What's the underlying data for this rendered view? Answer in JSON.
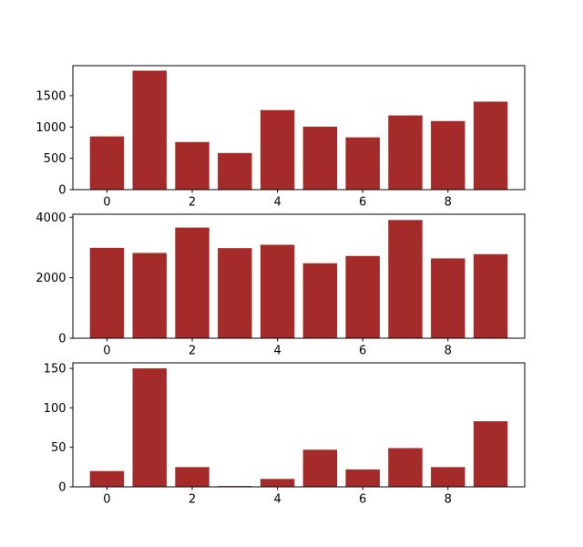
{
  "colors": {
    "bar": "#a52a2a",
    "axis": "#000000",
    "background": "#ffffff"
  },
  "chart_data": [
    {
      "type": "bar",
      "x": [
        0,
        1,
        2,
        3,
        4,
        5,
        6,
        7,
        8,
        9
      ],
      "values": [
        850,
        1900,
        760,
        585,
        1270,
        1005,
        835,
        1185,
        1095,
        1405
      ],
      "xlim": [
        -0.8,
        9.8
      ],
      "ylim": [
        0,
        1980
      ],
      "xticks": [
        0,
        2,
        4,
        6,
        8
      ],
      "xtick_labels": [
        "0",
        "2",
        "4",
        "6",
        "8"
      ],
      "yticks": [
        0,
        500,
        1000,
        1500
      ],
      "ytick_labels": [
        "0",
        "500",
        "1000",
        "1500"
      ],
      "grid": false
    },
    {
      "type": "bar",
      "x": [
        0,
        1,
        2,
        3,
        4,
        5,
        6,
        7,
        8,
        9
      ],
      "values": [
        2990,
        2820,
        3660,
        2980,
        3090,
        2480,
        2720,
        3910,
        2640,
        2780
      ],
      "xlim": [
        -0.8,
        9.8
      ],
      "ylim": [
        0,
        4100
      ],
      "xticks": [
        0,
        2,
        4,
        6,
        8
      ],
      "xtick_labels": [
        "0",
        "2",
        "4",
        "6",
        "8"
      ],
      "yticks": [
        0,
        2000,
        4000
      ],
      "ytick_labels": [
        "0",
        "2000",
        "4000"
      ],
      "grid": false
    },
    {
      "type": "bar",
      "x": [
        0,
        1,
        2,
        3,
        4,
        5,
        6,
        7,
        8,
        9
      ],
      "values": [
        20,
        150,
        25,
        1,
        10,
        47,
        22,
        49,
        25,
        83
      ],
      "xlim": [
        -0.8,
        9.8
      ],
      "ylim": [
        0,
        157
      ],
      "xticks": [
        0,
        2,
        4,
        6,
        8
      ],
      "xtick_labels": [
        "0",
        "2",
        "4",
        "6",
        "8"
      ],
      "yticks": [
        0,
        50,
        100,
        150
      ],
      "ytick_labels": [
        "0",
        "50",
        "100",
        "150"
      ],
      "grid": false
    }
  ]
}
